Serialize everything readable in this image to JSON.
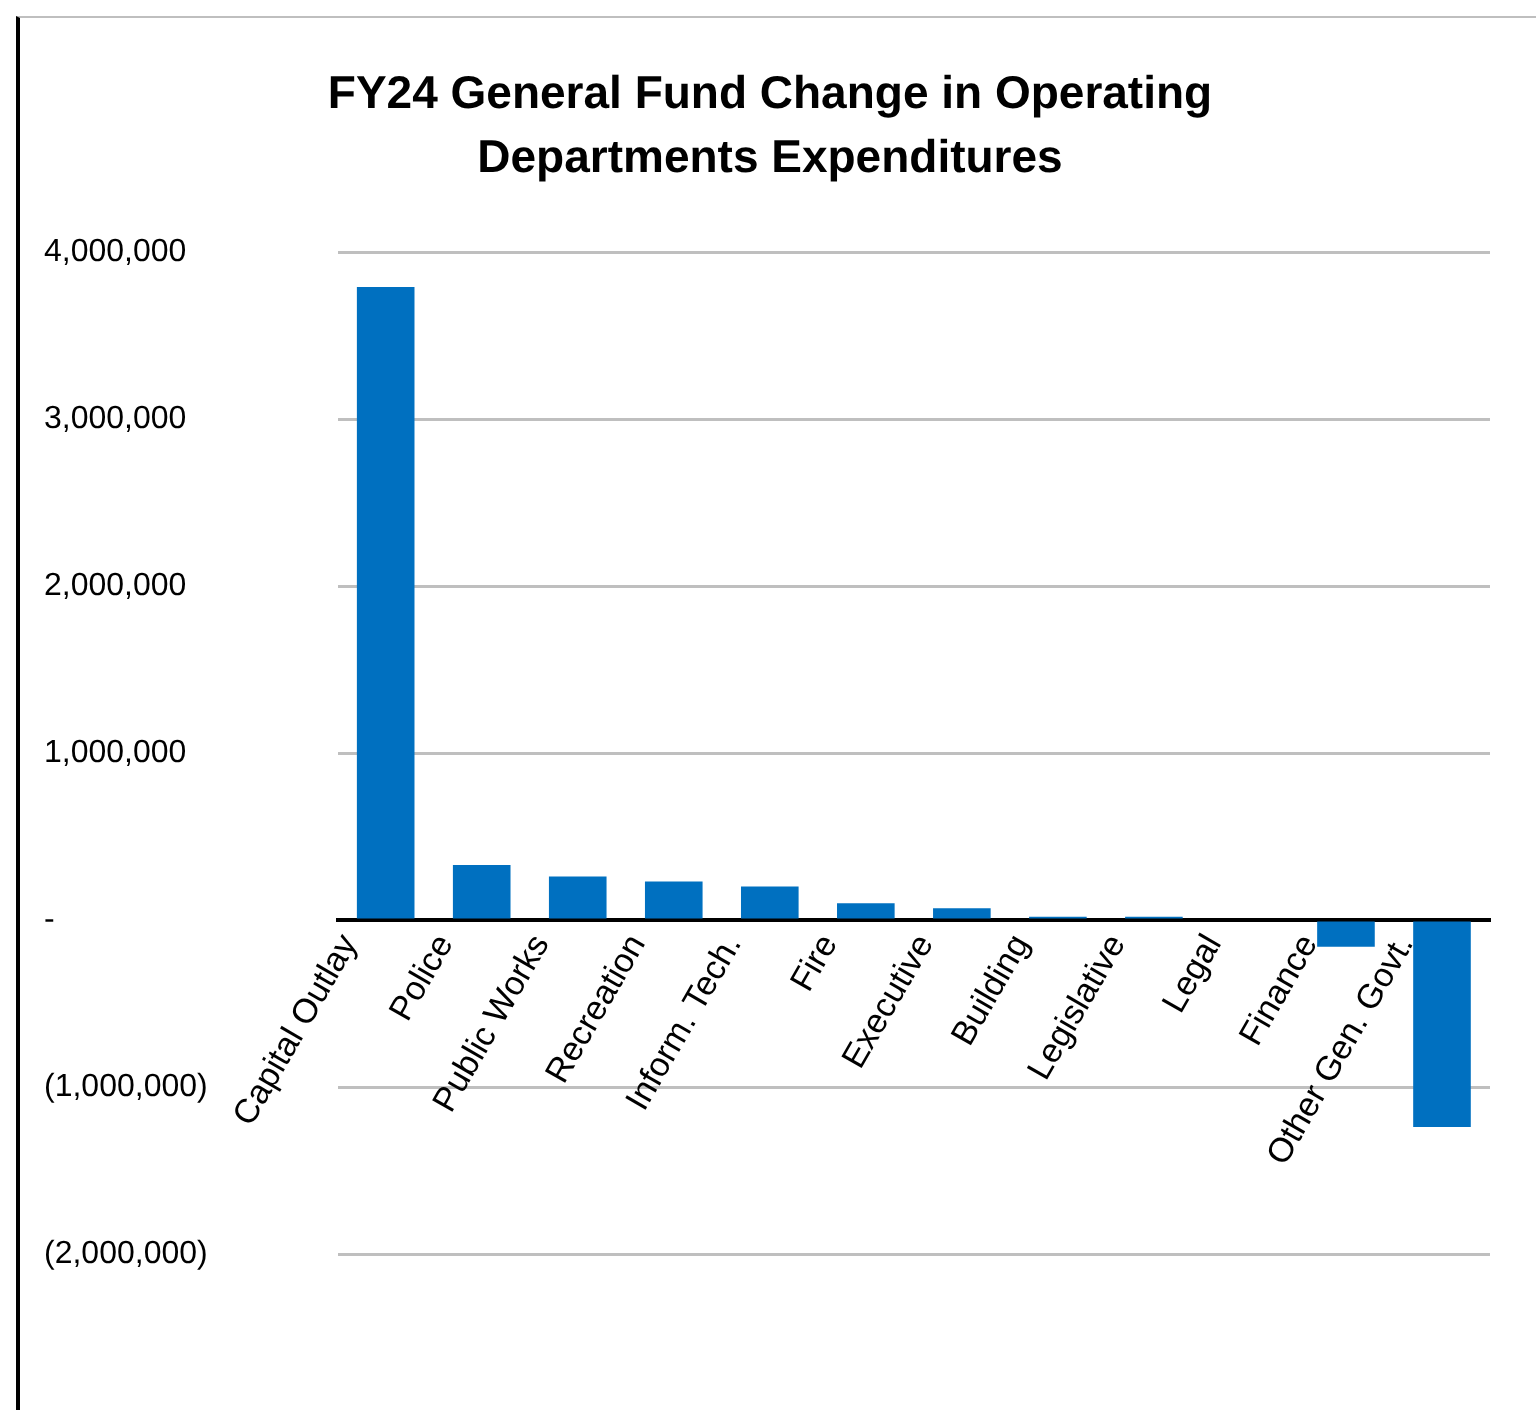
{
  "chart_data": {
    "type": "bar",
    "title": "FY24 General Fund Change in Operating Departments Expenditures",
    "categories": [
      "Capital Outlay",
      "Police",
      "Public Works",
      "Recreation",
      "Inform. Tech.",
      "Fire",
      "Executive",
      "Building",
      "Legislative",
      "Legal",
      "Finance",
      "Other Gen. Govt."
    ],
    "values": [
      3790000,
      330000,
      260000,
      230000,
      200000,
      100000,
      70000,
      20000,
      20000,
      0,
      -160000,
      -1240000
    ],
    "color": "#0070c0",
    "ylim": [
      -2000000,
      4000000
    ],
    "yticks": [
      {
        "value": -2000000,
        "label": "(2,000,000)"
      },
      {
        "value": -1000000,
        "label": "(1,000,000)"
      },
      {
        "value": 0,
        "label": "-"
      },
      {
        "value": 1000000,
        "label": "1,000,000"
      },
      {
        "value": 2000000,
        "label": "2,000,000"
      },
      {
        "value": 3000000,
        "label": "3,000,000"
      },
      {
        "value": 4000000,
        "label": "4,000,000"
      }
    ],
    "grid": "y",
    "legend": false
  }
}
